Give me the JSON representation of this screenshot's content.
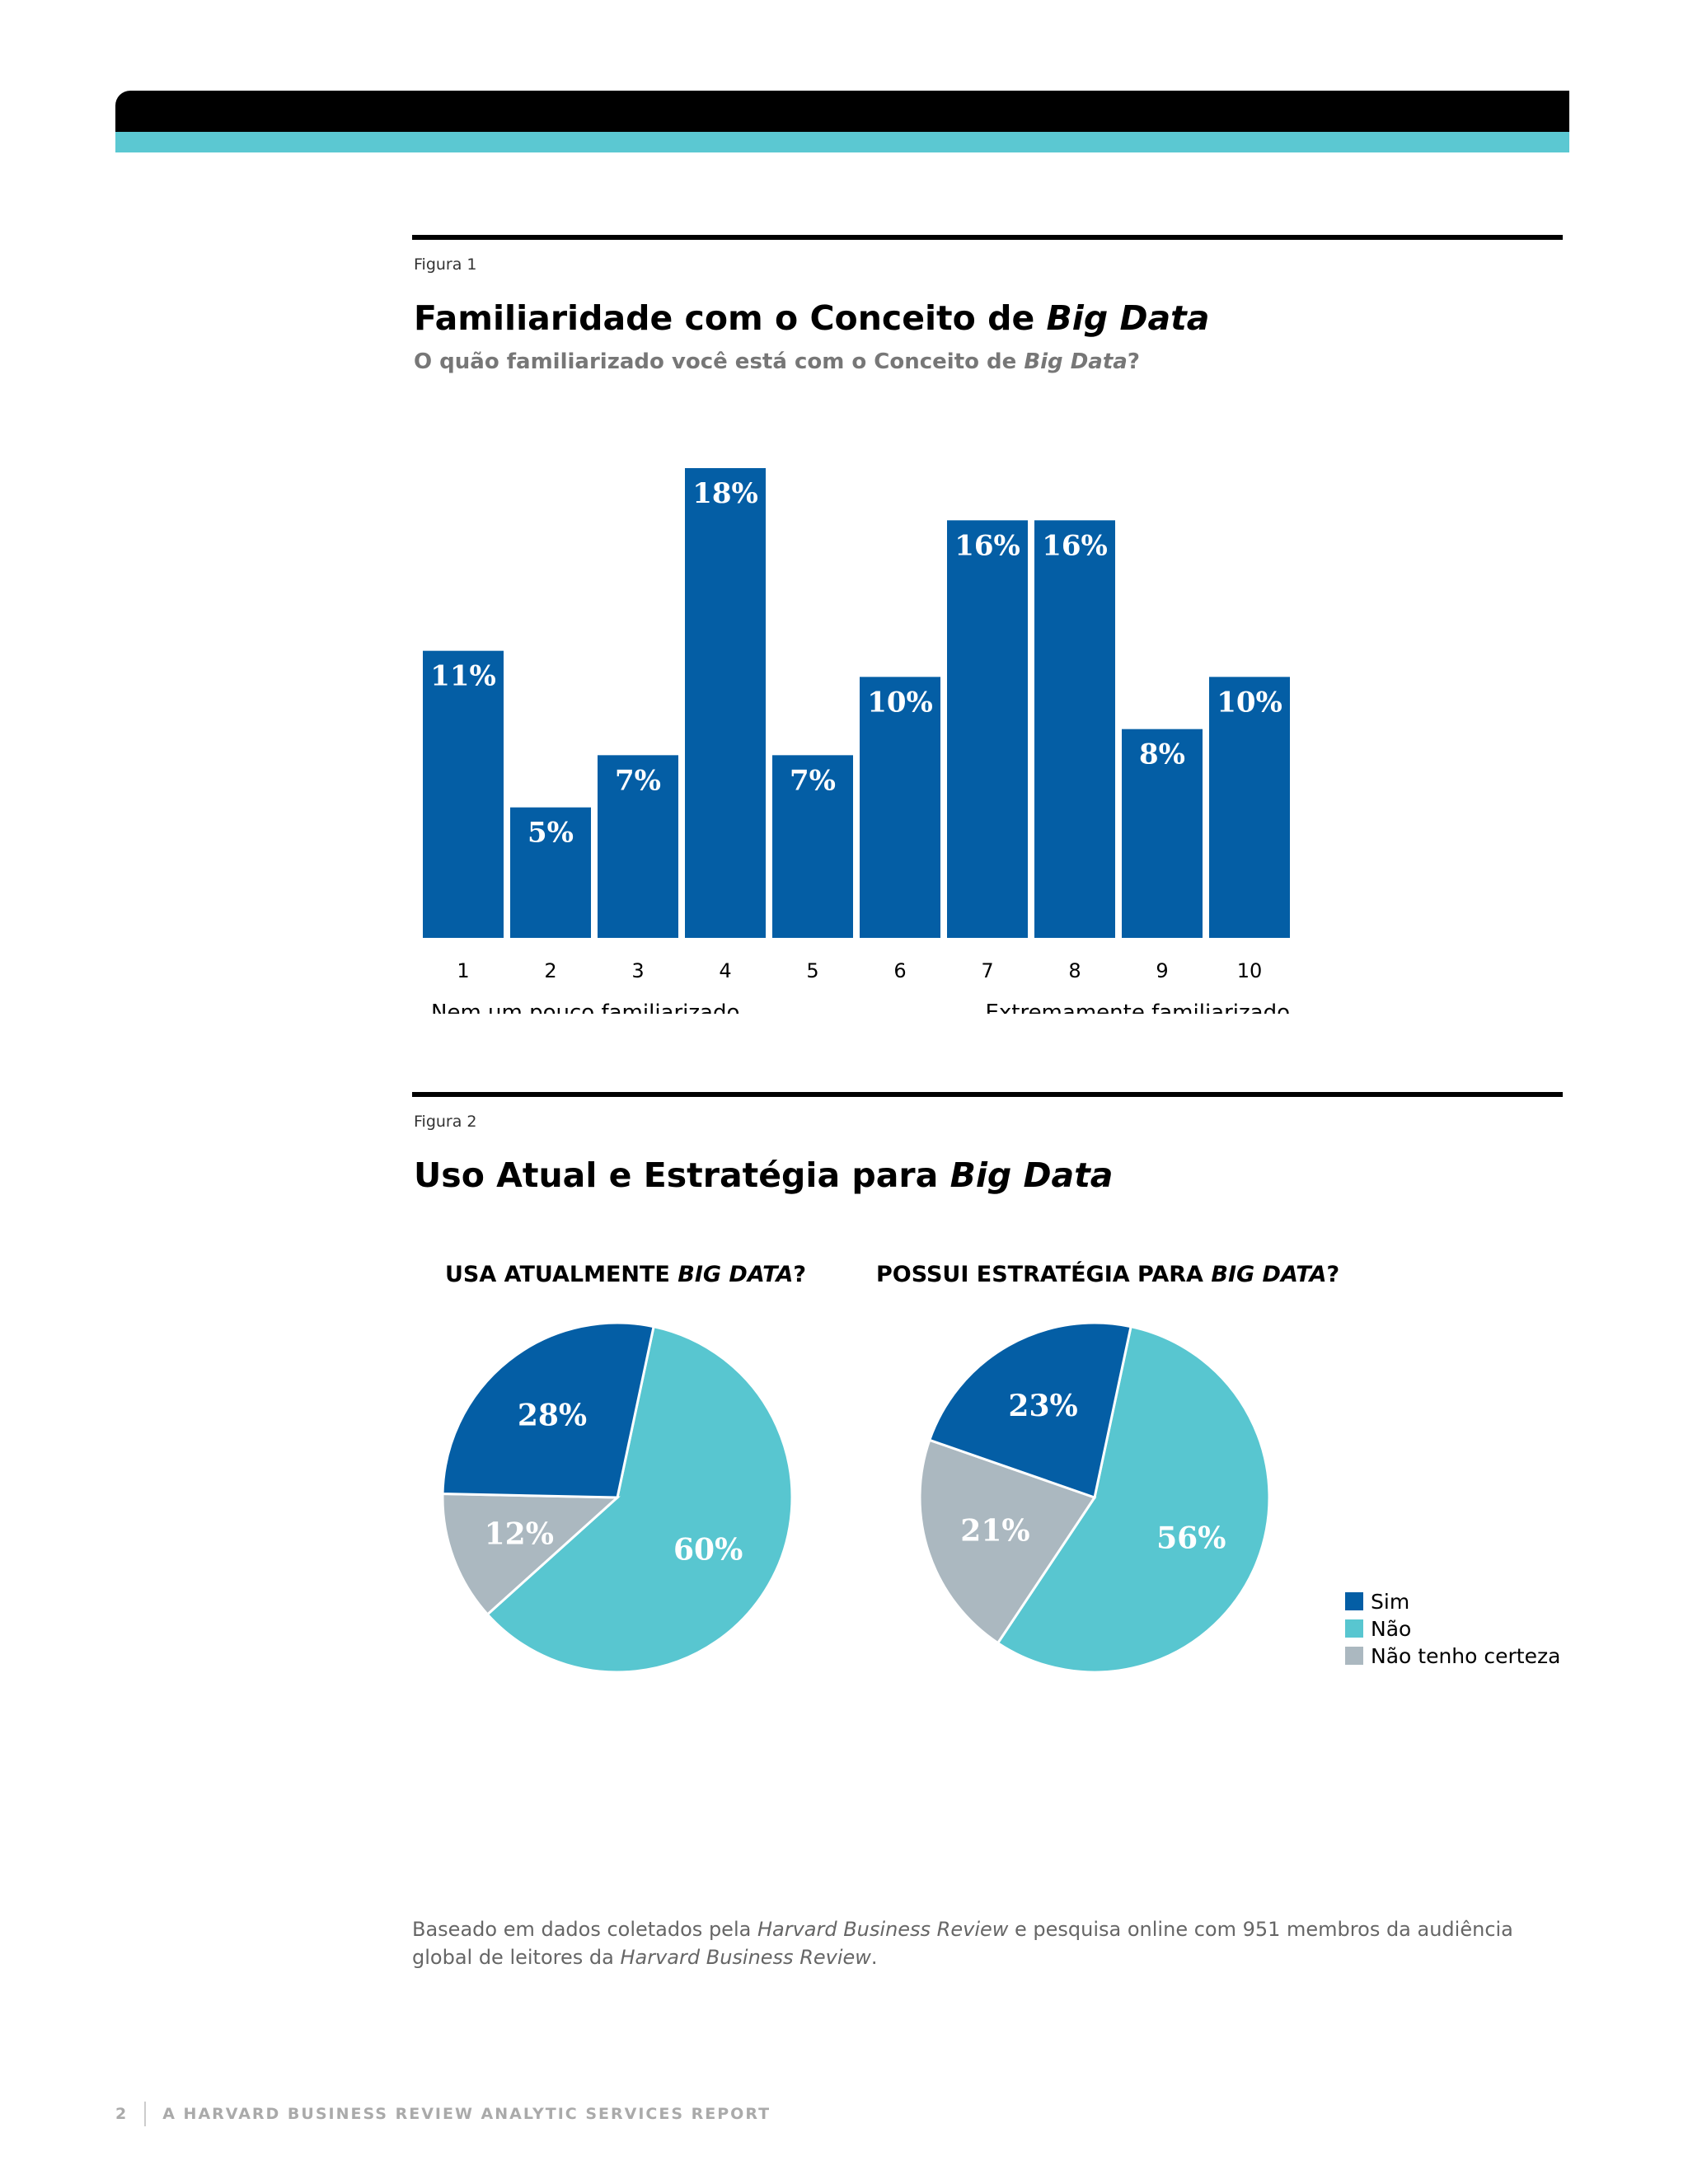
{
  "figure1": {
    "label": "Figura 1",
    "title_prefix": "Familiaridade com o Conceito de ",
    "title_emph": "Big Data",
    "subtitle_prefix": "O quão familiarizado você está com o Conceito de ",
    "subtitle_emph": "Big Data",
    "subtitle_suffix": "?"
  },
  "figure2": {
    "label": "Figura 2",
    "title_prefix": "Uso Atual e Estratégia para ",
    "title_emph": "Big Data",
    "pie1_title_prefix": "USA ATUALMENTE ",
    "pie1_title_emph": "BIG DATA",
    "pie1_title_suffix": "?",
    "pie2_title_prefix": "POSSUI ESTRATÉGIA PARA ",
    "pie2_title_emph": "BIG DATA",
    "pie2_title_suffix": "?"
  },
  "chart_data": [
    {
      "type": "bar",
      "categories": [
        "1",
        "2",
        "3",
        "4",
        "5",
        "6",
        "7",
        "8",
        "9",
        "10"
      ],
      "values": [
        11,
        5,
        7,
        18,
        7,
        10,
        16,
        16,
        8,
        10
      ],
      "value_labels": [
        "11%",
        "5%",
        "7%",
        "18%",
        "7%",
        "10%",
        "16%",
        "16%",
        "8%",
        "10%"
      ],
      "xlabel_left": "Nem um pouco familiarizado",
      "xlabel_right": "Extremamente familiarizado",
      "color": "#045ea5",
      "ylim": [
        0,
        18
      ]
    },
    {
      "type": "pie",
      "title": "USA ATUALMENTE BIG DATA?",
      "slices": [
        {
          "name": "Sim",
          "value": 28,
          "label": "28%",
          "color": "#045ea5"
        },
        {
          "name": "Não",
          "value": 60,
          "label": "60%",
          "color": "#58c6d0"
        },
        {
          "name": "Não tenho certeza",
          "value": 12,
          "label": "12%",
          "color": "#abb8c0"
        }
      ]
    },
    {
      "type": "pie",
      "title": "POSSUI ESTRATÉGIA PARA BIG DATA?",
      "slices": [
        {
          "name": "Sim",
          "value": 23,
          "label": "23%",
          "color": "#045ea5"
        },
        {
          "name": "Não",
          "value": 56,
          "label": "56%",
          "color": "#58c6d0"
        },
        {
          "name": "Não tenho certeza",
          "value": 21,
          "label": "21%",
          "color": "#abb8c0"
        }
      ]
    }
  ],
  "legend": [
    {
      "label": "Sim",
      "color": "#045ea5"
    },
    {
      "label": "Não",
      "color": "#58c6d0"
    },
    {
      "label": "Não tenho certeza",
      "color": "#abb8c0"
    }
  ],
  "note": {
    "part1": "Baseado em dados coletados pela ",
    "emph1": "Harvard Business Review",
    "part2": " e pesquisa online com 951 membros da audiência global de leitores da ",
    "emph2": "Harvard Business Review",
    "part3": "."
  },
  "footer": {
    "page_number": "2",
    "text": "A HARVARD BUSINESS REVIEW ANALYTIC SERVICES REPORT"
  }
}
